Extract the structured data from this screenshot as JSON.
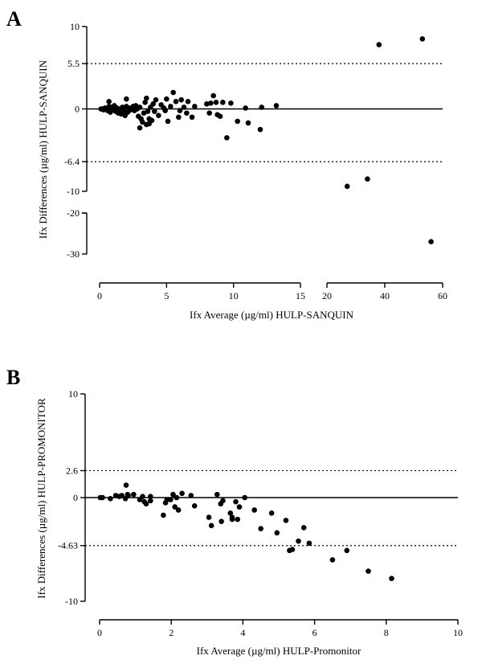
{
  "figure": {
    "panels": [
      {
        "letter": "A"
      },
      {
        "letter": "B"
      }
    ]
  },
  "chart_data": [
    {
      "type": "scatter",
      "title": "",
      "xlabel": "Ifx Average (µg/ml) HULP-SANQUIN",
      "ylabel": "Ifx Differences (µg/ml) HULP-SANQUIN",
      "x_axis_segments": [
        {
          "xlim": [
            0,
            15
          ],
          "ticks": [
            0,
            5,
            10,
            15
          ]
        },
        {
          "xlim": [
            20,
            60
          ],
          "ticks": [
            20,
            40,
            60
          ]
        }
      ],
      "y_axis_segments": [
        {
          "ylim": [
            -10,
            10
          ],
          "ticks": [
            10,
            5.5,
            0,
            -6.4,
            -10
          ],
          "tick_labels": [
            "10",
            "5.5",
            "0",
            "-6.4",
            "-10"
          ]
        },
        {
          "ylim": [
            -30,
            -20
          ],
          "ticks": [
            -20,
            -30
          ],
          "tick_labels": [
            "-20",
            "-30"
          ]
        }
      ],
      "reference_lines": [
        {
          "y": 0,
          "style": "solid"
        },
        {
          "y": 5.5,
          "style": "dotted"
        },
        {
          "y": -6.4,
          "style": "dotted"
        }
      ],
      "grid": false,
      "legend": "none",
      "marker_color": "#000000",
      "points": [
        [
          0.1,
          0
        ],
        [
          0.2,
          0
        ],
        [
          0.3,
          -0.1
        ],
        [
          0.4,
          0.1
        ],
        [
          0.5,
          0
        ],
        [
          0.6,
          -0.2
        ],
        [
          0.7,
          0.3
        ],
        [
          0.7,
          0.9
        ],
        [
          0.8,
          -0.4
        ],
        [
          0.9,
          0.2
        ],
        [
          1,
          -0.1
        ],
        [
          1.1,
          0.4
        ],
        [
          1.2,
          -0.3
        ],
        [
          1.3,
          0.1
        ],
        [
          1.4,
          -0.5
        ],
        [
          1.5,
          0
        ],
        [
          1.6,
          -0.6
        ],
        [
          1.7,
          0.2
        ],
        [
          1.8,
          -0.2
        ],
        [
          1.9,
          -0.8
        ],
        [
          2,
          0.3
        ],
        [
          2,
          1.2
        ],
        [
          2.1,
          -0.4
        ],
        [
          2.2,
          0.1
        ],
        [
          2.3,
          -0.1
        ],
        [
          2.5,
          0.3
        ],
        [
          2.6,
          -0.2
        ],
        [
          2.7,
          0.4
        ],
        [
          2.8,
          0
        ],
        [
          2.9,
          -0.9
        ],
        [
          3,
          -2.3
        ],
        [
          3,
          0.2
        ],
        [
          3.1,
          -1.2
        ],
        [
          3.2,
          -1.6
        ],
        [
          3.3,
          -0.5
        ],
        [
          3.4,
          0.8
        ],
        [
          3.5,
          -1.9
        ],
        [
          3.5,
          1.3
        ],
        [
          3.6,
          -0.3
        ],
        [
          3.7,
          -1.2
        ],
        [
          3.7,
          -1.8
        ],
        [
          3.8,
          0.2
        ],
        [
          3.9,
          -1.4
        ],
        [
          4,
          0.6
        ],
        [
          4.1,
          -0.3
        ],
        [
          4.2,
          1.1
        ],
        [
          4.4,
          -0.8
        ],
        [
          4.6,
          0.5
        ],
        [
          4.8,
          0.1
        ],
        [
          4.9,
          -0.2
        ],
        [
          5,
          1.2
        ],
        [
          5.1,
          -1.5
        ],
        [
          5.3,
          0.3
        ],
        [
          5.5,
          2
        ],
        [
          5.7,
          0.9
        ],
        [
          5.9,
          -1
        ],
        [
          6,
          -0.2
        ],
        [
          6.1,
          1.1
        ],
        [
          6.3,
          0.2
        ],
        [
          6.5,
          -0.5
        ],
        [
          6.6,
          0.9
        ],
        [
          6.9,
          -1
        ],
        [
          7.1,
          0.3
        ],
        [
          8,
          0.6
        ],
        [
          8.2,
          -0.5
        ],
        [
          8.3,
          0.7
        ],
        [
          8.5,
          1.6
        ],
        [
          8.7,
          0.8
        ],
        [
          8.8,
          -0.7
        ],
        [
          9.0,
          -0.9
        ],
        [
          9.2,
          0.8
        ],
        [
          9.5,
          -3.5
        ],
        [
          9.8,
          0.7
        ],
        [
          10.3,
          -1.5
        ],
        [
          10.9,
          0.1
        ],
        [
          11.1,
          -1.7
        ],
        [
          12.0,
          -2.5
        ],
        [
          12.1,
          0.2
        ],
        [
          13.2,
          0.4
        ],
        [
          38,
          7.8
        ],
        [
          53,
          8.5
        ],
        [
          27,
          -9.4
        ],
        [
          34,
          -8.5
        ],
        [
          56,
          -27
        ]
      ]
    },
    {
      "type": "scatter",
      "title": "",
      "xlabel": "Ifx Average (µg/ml) HULP-Promonitor",
      "ylabel": "Ifx Differences (µg/ml) HULP-PROMONITOR",
      "xlim": [
        0,
        10
      ],
      "x_ticks": [
        0,
        2,
        4,
        6,
        8,
        10
      ],
      "ylim": [
        -10,
        10
      ],
      "y_ticks": [
        10,
        2.6,
        0,
        -4.63,
        -10
      ],
      "y_tick_labels": [
        "10",
        "2.6",
        "0",
        "-4.63",
        "-10"
      ],
      "reference_lines": [
        {
          "y": 0,
          "style": "solid"
        },
        {
          "y": 2.6,
          "style": "dotted"
        },
        {
          "y": -4.63,
          "style": "dotted"
        }
      ],
      "grid": false,
      "legend": "none",
      "marker_color": "#000000",
      "points": [
        [
          0.02,
          0
        ],
        [
          0.08,
          0
        ],
        [
          0.3,
          -0.1
        ],
        [
          0.45,
          0.2
        ],
        [
          0.55,
          0.1
        ],
        [
          0.62,
          0.2
        ],
        [
          0.72,
          -0.1
        ],
        [
          0.74,
          1.2
        ],
        [
          0.78,
          0.3
        ],
        [
          0.8,
          0.2
        ],
        [
          0.95,
          0.3
        ],
        [
          1.12,
          -0.2
        ],
        [
          1.2,
          0.1
        ],
        [
          1.25,
          -0.4
        ],
        [
          1.3,
          -0.6
        ],
        [
          1.42,
          0.1
        ],
        [
          1.42,
          -0.3
        ],
        [
          1.78,
          -1.7
        ],
        [
          1.84,
          -0.5
        ],
        [
          1.88,
          -0.2
        ],
        [
          1.98,
          -0.2
        ],
        [
          2.05,
          0.3
        ],
        [
          2.1,
          -0.9
        ],
        [
          2.15,
          0
        ],
        [
          2.2,
          -1.2
        ],
        [
          2.3,
          0.4
        ],
        [
          2.55,
          0.2
        ],
        [
          2.65,
          -0.8
        ],
        [
          3.05,
          -1.9
        ],
        [
          3.12,
          -2.7
        ],
        [
          3.28,
          0.3
        ],
        [
          3.38,
          -0.6
        ],
        [
          3.4,
          -2.3
        ],
        [
          3.44,
          -0.3
        ],
        [
          3.65,
          -1.5
        ],
        [
          3.7,
          -2.1
        ],
        [
          3.7,
          -1.9
        ],
        [
          3.8,
          -0.4
        ],
        [
          3.85,
          -2.1
        ],
        [
          3.9,
          -0.9
        ],
        [
          4.05,
          0
        ],
        [
          4.32,
          -1.2
        ],
        [
          4.5,
          -3
        ],
        [
          4.8,
          -1.5
        ],
        [
          4.95,
          -3.4
        ],
        [
          5.2,
          -2.2
        ],
        [
          5.3,
          -5.1
        ],
        [
          5.38,
          -5
        ],
        [
          5.55,
          -4.2
        ],
        [
          5.7,
          -2.9
        ],
        [
          5.85,
          -4.4
        ],
        [
          6.5,
          -6
        ],
        [
          6.9,
          -5.1
        ],
        [
          7.5,
          -7.1
        ],
        [
          8.15,
          -7.8
        ]
      ]
    }
  ]
}
